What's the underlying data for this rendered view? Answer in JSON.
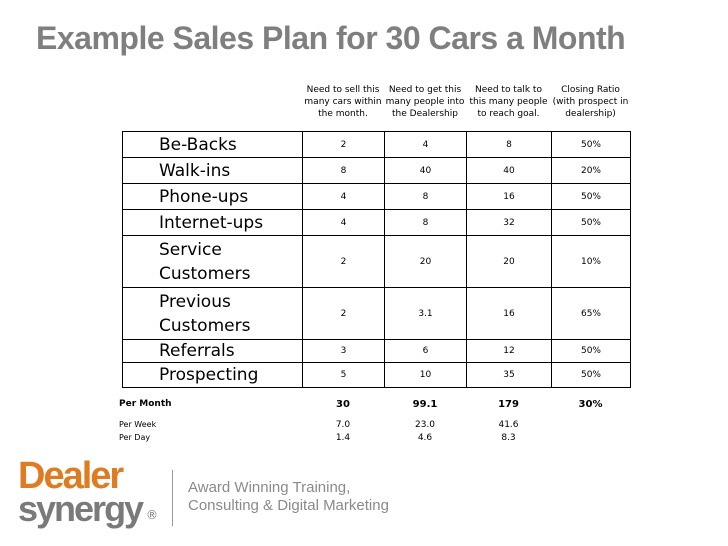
{
  "title": "Example Sales Plan for 30 Cars a Month",
  "columns": [
    "Need to sell this many cars within the month.",
    "Need to get this many people into the Dealership",
    "Need to talk to this many people to reach goal.",
    "Closing Ratio (with prospect in dealership)"
  ],
  "rows": [
    {
      "label": "Be-Backs",
      "cells": [
        "2",
        "4",
        "8",
        "50%"
      ]
    },
    {
      "label": "Walk-ins",
      "cells": [
        "8",
        "40",
        "40",
        "20%"
      ]
    },
    {
      "label": "Phone-ups",
      "cells": [
        "4",
        "8",
        "16",
        "50%"
      ]
    },
    {
      "label": "Internet-ups",
      "cells": [
        "4",
        "8",
        "32",
        "50%"
      ]
    },
    {
      "label": "Service Customers",
      "cells": [
        "2",
        "20",
        "20",
        "10%"
      ]
    },
    {
      "label": "Previous Customers",
      "cells": [
        "2",
        "3.1",
        "16",
        "65%"
      ]
    },
    {
      "label": "Referrals",
      "cells": [
        "3",
        "6",
        "12",
        "50%"
      ]
    },
    {
      "label": "Prospecting",
      "cells": [
        "5",
        "10",
        "35",
        "50%"
      ]
    }
  ],
  "totals": [
    {
      "label": "Per Month",
      "cells": [
        "30",
        "99.1",
        "179",
        "30%"
      ]
    },
    {
      "label": "Per Week",
      "cells": [
        "7.0",
        "23.0",
        "41.6"
      ]
    },
    {
      "label": "Per Day",
      "cells": [
        "1.4",
        "4.6",
        "8.3"
      ]
    }
  ],
  "logo": {
    "brand_top": "Dealer",
    "brand_bottom": "synergy",
    "registered": "®",
    "tagline": [
      "Award Winning Training,",
      "Consulting & Digital Marketing"
    ]
  }
}
